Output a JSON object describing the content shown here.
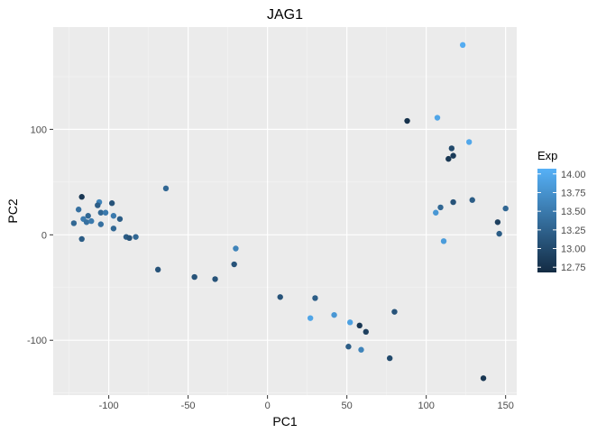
{
  "chart_data": {
    "type": "scatter",
    "title": "JAG1",
    "xlabel": "PC1",
    "ylabel": "PC2",
    "xlim": [
      -135,
      157
    ],
    "ylim": [
      -152,
      197
    ],
    "xticks": [
      -100,
      -50,
      0,
      50,
      100,
      150
    ],
    "yticks": [
      -100,
      0,
      100
    ],
    "grid": true,
    "legend": {
      "title": "Exp",
      "position": "right",
      "type": "colorbar",
      "range": [
        12.68,
        14.07
      ],
      "breaks": [
        14.0,
        13.75,
        13.5,
        13.25,
        13.0,
        12.75
      ],
      "break_labels": [
        "14.00",
        "13.75",
        "13.50",
        "13.25",
        "13.00",
        "12.75"
      ],
      "low_color": "#132B43",
      "high_color": "#56B1F7"
    },
    "points": [
      {
        "x": -122,
        "y": 11,
        "exp": 13.3
      },
      {
        "x": -119,
        "y": 24,
        "exp": 13.4
      },
      {
        "x": -117,
        "y": 36,
        "exp": 12.8
      },
      {
        "x": -116,
        "y": 15,
        "exp": 13.5
      },
      {
        "x": -117,
        "y": -4,
        "exp": 13.2
      },
      {
        "x": -114,
        "y": 12,
        "exp": 13.4
      },
      {
        "x": -113,
        "y": 18,
        "exp": 13.3
      },
      {
        "x": -111,
        "y": 13,
        "exp": 13.5
      },
      {
        "x": -106,
        "y": 31,
        "exp": 13.6
      },
      {
        "x": -107,
        "y": 28,
        "exp": 13.2
      },
      {
        "x": -105,
        "y": 21,
        "exp": 13.3
      },
      {
        "x": -105,
        "y": 10,
        "exp": 13.4
      },
      {
        "x": -102,
        "y": 21,
        "exp": 13.5
      },
      {
        "x": -98,
        "y": 30,
        "exp": 13.1
      },
      {
        "x": -97,
        "y": 18,
        "exp": 13.5
      },
      {
        "x": -97,
        "y": 6,
        "exp": 13.3
      },
      {
        "x": -93,
        "y": 15,
        "exp": 13.2
      },
      {
        "x": -89,
        "y": -2,
        "exp": 13.2
      },
      {
        "x": -87,
        "y": -3,
        "exp": 13.1
      },
      {
        "x": -83,
        "y": -2,
        "exp": 13.3
      },
      {
        "x": -64,
        "y": 44,
        "exp": 13.3
      },
      {
        "x": -69,
        "y": -33,
        "exp": 13.1
      },
      {
        "x": -46,
        "y": -40,
        "exp": 13.1
      },
      {
        "x": -33,
        "y": -42,
        "exp": 13.1
      },
      {
        "x": -20,
        "y": -13,
        "exp": 13.6
      },
      {
        "x": -21,
        "y": -28,
        "exp": 13.1
      },
      {
        "x": 8,
        "y": -59,
        "exp": 13.1
      },
      {
        "x": 30,
        "y": -60,
        "exp": 13.2
      },
      {
        "x": 27,
        "y": -79,
        "exp": 13.95
      },
      {
        "x": 42,
        "y": -76,
        "exp": 13.8
      },
      {
        "x": 52,
        "y": -83,
        "exp": 13.9
      },
      {
        "x": 58,
        "y": -86,
        "exp": 12.8
      },
      {
        "x": 62,
        "y": -92,
        "exp": 12.9
      },
      {
        "x": 51,
        "y": -106,
        "exp": 13.2
      },
      {
        "x": 59,
        "y": -109,
        "exp": 13.6
      },
      {
        "x": 77,
        "y": -117,
        "exp": 13.0
      },
      {
        "x": 80,
        "y": -73,
        "exp": 13.1
      },
      {
        "x": 88,
        "y": 108,
        "exp": 12.75
      },
      {
        "x": 107,
        "y": 111,
        "exp": 13.95
      },
      {
        "x": 123,
        "y": 180,
        "exp": 14.02
      },
      {
        "x": 127,
        "y": 88,
        "exp": 13.97
      },
      {
        "x": 116,
        "y": 82,
        "exp": 13.0
      },
      {
        "x": 117,
        "y": 75,
        "exp": 12.85
      },
      {
        "x": 114,
        "y": 72,
        "exp": 12.8
      },
      {
        "x": 106,
        "y": 21,
        "exp": 13.8
      },
      {
        "x": 109,
        "y": 26,
        "exp": 13.3
      },
      {
        "x": 111,
        "y": -6,
        "exp": 13.85
      },
      {
        "x": 117,
        "y": 31,
        "exp": 13.1
      },
      {
        "x": 129,
        "y": 33,
        "exp": 13.2
      },
      {
        "x": 145,
        "y": 12,
        "exp": 12.9
      },
      {
        "x": 146,
        "y": 1,
        "exp": 13.2
      },
      {
        "x": 150,
        "y": 25,
        "exp": 13.3
      },
      {
        "x": 136,
        "y": -136,
        "exp": 12.8
      }
    ]
  }
}
